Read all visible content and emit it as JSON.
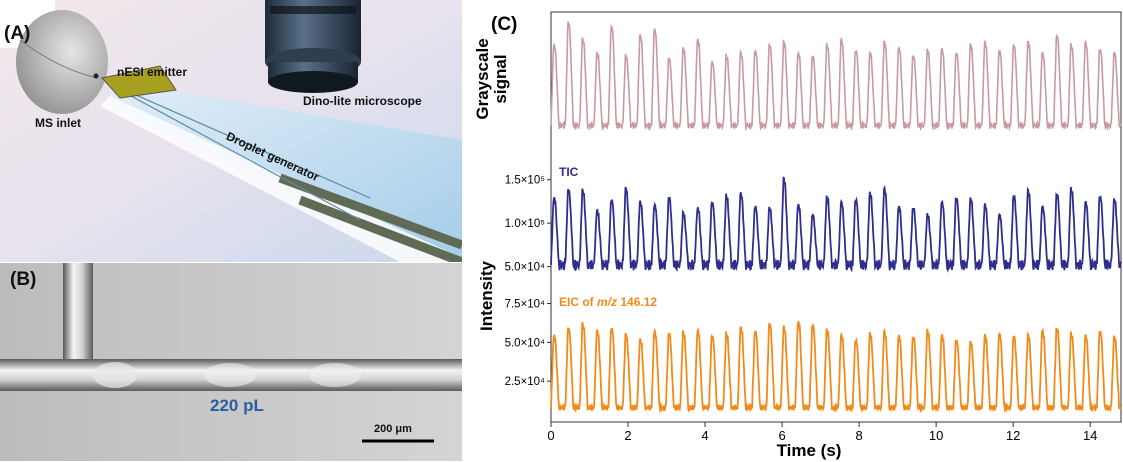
{
  "panel_a": {
    "label": "(A)",
    "labels": {
      "nesi": "nESI emitter",
      "dino": "Dino-lite microscope",
      "ms": "MS inlet",
      "droplet": "Droplet generator"
    }
  },
  "panel_b": {
    "label": "(B)",
    "volume": "220 pL",
    "scalebar": "200 μm"
  },
  "panel_c": {
    "label": "(C)"
  },
  "colors": {
    "grayscale": "#c79aa2",
    "tic": "#2e2e8c",
    "eic": "#f28a1a",
    "volume_text": "#2b5e9e"
  },
  "chart_data": {
    "type": "line",
    "xlabel": "Time (s)",
    "xlim": [
      0,
      14.8
    ],
    "xticks": [
      0,
      2,
      4,
      6,
      8,
      10,
      12,
      14
    ],
    "ylabel_top": "Grayscale signal",
    "ylabel_bottom": "Intensity",
    "period": 0.373,
    "series": [
      {
        "name": "",
        "panel": "grayscale",
        "baseline": 0.18,
        "peak_values": [
          0.78,
          0.95,
          0.82,
          0.72,
          0.92,
          0.7,
          0.85,
          0.9,
          0.68,
          0.75,
          0.82,
          0.65,
          0.7,
          0.72,
          0.74,
          0.78,
          0.8,
          0.72,
          0.7,
          0.78,
          0.82,
          0.74,
          0.72,
          0.8,
          0.76,
          0.7,
          0.74,
          0.75,
          0.72,
          0.78,
          0.8,
          0.74,
          0.78,
          0.8,
          0.72,
          0.85,
          0.78,
          0.8,
          0.75,
          0.72
        ]
      },
      {
        "name": "TIC",
        "panel": "tic",
        "yticks_label": [
          "1.5×10⁵",
          "1.0×10⁵",
          "5.0×10⁴"
        ],
        "ytick_values": [
          150000,
          100000,
          50000
        ],
        "ylim": [
          30000,
          175000
        ],
        "baseline": 52000,
        "peak_values": [
          130000,
          140000,
          138000,
          115000,
          128000,
          140000,
          125000,
          122000,
          130000,
          112000,
          118000,
          125000,
          132000,
          135000,
          120000,
          118000,
          152000,
          122000,
          110000,
          130000,
          125000,
          128000,
          135000,
          140000,
          120000,
          118000,
          110000,
          125000,
          130000,
          128000,
          122000,
          110000,
          132000,
          138000,
          120000,
          135000,
          140000,
          125000,
          132000,
          128000
        ]
      },
      {
        "name": "EIC of m/z 146.12",
        "panel": "eic",
        "yticks_label": [
          "7.5×10⁴",
          "5.0×10⁴",
          "2.5×10⁴"
        ],
        "ytick_values": [
          75000,
          50000,
          25000
        ],
        "ylim": [
          0,
          85000
        ],
        "baseline": 8000,
        "peak_values": [
          55000,
          60000,
          62000,
          58000,
          60000,
          55000,
          52000,
          58000,
          56000,
          57000,
          58000,
          55000,
          56000,
          60000,
          58000,
          62000,
          60000,
          64000,
          62000,
          58000,
          55000,
          52000,
          56000,
          57000,
          55000,
          54000,
          58000,
          55000,
          52000,
          50000,
          55000,
          56000,
          54000,
          55000,
          58000,
          60000,
          56000,
          55000,
          58000,
          54000
        ]
      }
    ]
  }
}
